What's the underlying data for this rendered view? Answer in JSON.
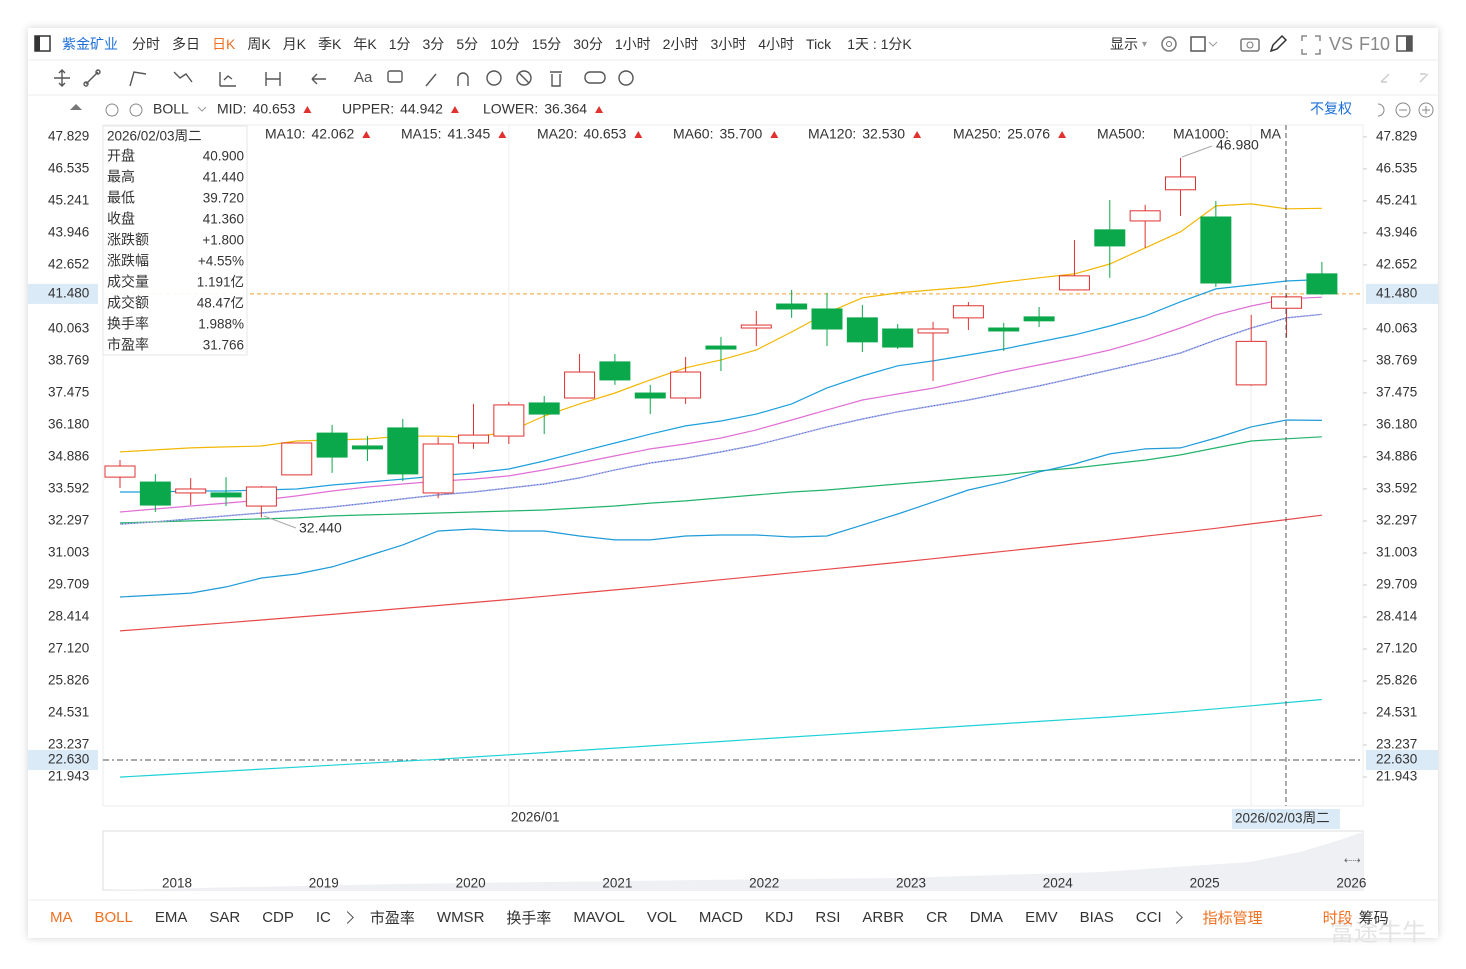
{
  "toolbar": {
    "stock": "紫金矿业",
    "periods": [
      "分时",
      "多日",
      "日K",
      "周K",
      "月K",
      "季K",
      "年K",
      "1分",
      "3分",
      "5分",
      "10分",
      "15分",
      "30分",
      "1小时",
      "2小时",
      "3小时",
      "4小时",
      "Tick",
      "1天 : 1分K"
    ],
    "active_period": "日K",
    "display": "显示",
    "vs": "VS",
    "f10": "F10",
    "text_tool": "Aa",
    "adjust": "不复权"
  },
  "chart_data": {
    "type": "candlestick",
    "categories": [
      null,
      null,
      null,
      null,
      null,
      null,
      null,
      null,
      null,
      null,
      null,
      "2026/01",
      null,
      null,
      null,
      null,
      null,
      null,
      null,
      null,
      null,
      null,
      null,
      null,
      null,
      null,
      null,
      null,
      null,
      null,
      null,
      null,
      null,
      null,
      null
    ],
    "open": [
      34.07,
      33.87,
      33.43,
      33.43,
      32.9,
      34.16,
      35.85,
      35.33,
      36.06,
      33.43,
      35.45,
      35.73,
      37.07,
      37.27,
      38.73,
      37.47,
      37.27,
      39.37,
      40.1,
      41.07,
      40.87,
      40.51,
      40.06,
      39.9,
      40.51,
      40.1,
      40.55,
      41.64,
      44.07,
      44.43,
      45.69,
      44.59,
      37.8,
      40.9,
      42.29
    ],
    "high": [
      34.76,
      34.19,
      34.03,
      34.07,
      33.71,
      35.45,
      36.18,
      35.73,
      36.42,
      35.69,
      37.03,
      37.11,
      37.35,
      39.05,
      39.05,
      37.8,
      38.93,
      39.74,
      40.79,
      41.64,
      41.52,
      41.03,
      40.26,
      40.35,
      41.15,
      40.31,
      40.95,
      43.66,
      45.28,
      45.08,
      46.98,
      45.24,
      40.63,
      41.44,
      42.77
    ],
    "low": [
      33.63,
      32.66,
      32.94,
      32.9,
      32.44,
      34.16,
      34.24,
      34.72,
      33.91,
      33.22,
      35.21,
      35.41,
      35.81,
      37.27,
      37.8,
      36.62,
      37.03,
      38.36,
      39.37,
      40.51,
      39.37,
      39.13,
      39.25,
      37.96,
      40.02,
      39.17,
      40.14,
      41.64,
      42.13,
      43.34,
      44.63,
      41.76,
      37.76,
      39.72,
      41.44
    ],
    "close": [
      34.52,
      32.94,
      33.59,
      33.27,
      33.67,
      35.45,
      34.88,
      35.21,
      34.2,
      35.41,
      35.77,
      36.99,
      36.62,
      38.32,
      38.0,
      37.27,
      38.32,
      39.25,
      40.22,
      40.87,
      40.06,
      39.54,
      39.33,
      40.06,
      41.0,
      39.98,
      40.39,
      42.21,
      43.42,
      44.84,
      46.21,
      41.92,
      39.56,
      41.36,
      41.48
    ],
    "up_color": "#e0312f",
    "down_color": "#0aa84a",
    "series": [
      {
        "name": "MA10:",
        "color": "#1ea0dc",
        "legend_value": "42.062",
        "values": [
          33.47,
          33.47,
          33.51,
          33.51,
          33.55,
          33.59,
          33.75,
          33.87,
          33.99,
          34.12,
          34.24,
          34.4,
          34.72,
          35.09,
          35.45,
          35.81,
          36.14,
          36.34,
          36.62,
          37.03,
          37.68,
          38.16,
          38.57,
          38.77,
          39.01,
          39.25,
          39.54,
          39.82,
          40.18,
          40.59,
          41.16,
          41.68,
          41.84,
          42.0,
          42.062
        ]
      },
      {
        "name": "MA15:",
        "color": "#e06fd6",
        "legend_value": "41.345",
        "values": [
          32.66,
          32.78,
          32.9,
          33.02,
          33.14,
          33.31,
          33.51,
          33.67,
          33.79,
          33.91,
          33.99,
          34.12,
          34.36,
          34.64,
          34.93,
          35.21,
          35.41,
          35.65,
          35.98,
          36.38,
          36.79,
          37.19,
          37.43,
          37.67,
          37.99,
          38.32,
          38.61,
          38.89,
          39.21,
          39.62,
          40.1,
          40.63,
          40.99,
          41.28,
          41.345
        ]
      },
      {
        "name": "MA20:",
        "color": "#2a7fd4",
        "legend_value": "40.653",
        "values": [
          32.17,
          32.26,
          32.38,
          32.5,
          32.62,
          32.74,
          32.86,
          33.02,
          33.19,
          33.35,
          33.47,
          33.63,
          33.79,
          34.04,
          34.36,
          34.64,
          34.84,
          35.09,
          35.37,
          35.73,
          36.1,
          36.42,
          36.71,
          36.95,
          37.19,
          37.47,
          37.76,
          38.08,
          38.4,
          38.73,
          39.09,
          39.62,
          40.1,
          40.51,
          40.653
        ]
      },
      {
        "name": "MA60:",
        "color": "#23b36b",
        "legend_value": "35.700",
        "values": [
          32.22,
          32.26,
          32.3,
          32.34,
          32.38,
          32.42,
          32.5,
          32.54,
          32.58,
          32.62,
          32.66,
          32.7,
          32.74,
          32.82,
          32.9,
          33.02,
          33.11,
          33.23,
          33.35,
          33.47,
          33.55,
          33.67,
          33.79,
          33.91,
          34.04,
          34.16,
          34.32,
          34.44,
          34.6,
          34.76,
          34.97,
          35.25,
          35.53,
          35.62,
          35.7
        ]
      },
      {
        "name": "MA120:",
        "color": "#e84a4a",
        "legend_value": "32.530",
        "values": [
          27.85,
          27.96,
          28.07,
          28.18,
          28.29,
          28.41,
          28.52,
          28.64,
          28.76,
          28.88,
          29.0,
          29.12,
          29.25,
          29.38,
          29.51,
          29.64,
          29.78,
          29.92,
          30.06,
          30.2,
          30.34,
          30.48,
          30.62,
          30.77,
          30.92,
          31.07,
          31.22,
          31.37,
          31.52,
          31.68,
          31.84,
          32.0,
          32.18,
          32.35,
          32.53
        ]
      },
      {
        "name": "MA250:",
        "color": "#1fd1d6",
        "legend_value": "25.076",
        "values": [
          21.94,
          22.02,
          22.1,
          22.18,
          22.26,
          22.34,
          22.42,
          22.5,
          22.58,
          22.66,
          22.75,
          22.84,
          22.93,
          23.02,
          23.11,
          23.2,
          23.29,
          23.38,
          23.47,
          23.56,
          23.65,
          23.74,
          23.83,
          23.92,
          24.01,
          24.1,
          24.19,
          24.28,
          24.37,
          24.47,
          24.58,
          24.7,
          24.82,
          24.95,
          25.076
        ]
      }
    ],
    "inactive_legend": [
      {
        "name": "MA500:",
        "color": "#f8e4a8"
      },
      {
        "name": "MA1000:",
        "color": "#dcd0f0"
      },
      {
        "name": "MA",
        "color": "#dcd0f0"
      }
    ],
    "boll": {
      "name": "BOLL",
      "series": [
        {
          "name": "MID:",
          "color": "#c9a6e6",
          "legend_color": "#f4a0c8",
          "dash": true,
          "legend_value": "40.653",
          "values": [
            32.17,
            32.26,
            32.38,
            32.5,
            32.62,
            32.74,
            32.86,
            33.02,
            33.19,
            33.35,
            33.47,
            33.63,
            33.79,
            34.04,
            34.36,
            34.64,
            34.84,
            35.09,
            35.37,
            35.73,
            36.1,
            36.42,
            36.71,
            36.95,
            37.19,
            37.47,
            37.76,
            38.08,
            38.4,
            38.73,
            39.09,
            39.62,
            40.1,
            40.51,
            40.653
          ]
        },
        {
          "name": "UPPER:",
          "color": "#f2b705",
          "legend_color": "#f2b705",
          "dash": false,
          "legend_value": "44.942",
          "values": [
            35.09,
            35.17,
            35.25,
            35.29,
            35.33,
            35.53,
            35.57,
            35.61,
            35.73,
            35.73,
            35.69,
            35.9,
            36.54,
            37.03,
            37.47,
            38.0,
            38.49,
            38.81,
            39.21,
            39.94,
            40.71,
            41.32,
            41.52,
            41.64,
            41.76,
            41.96,
            42.13,
            42.29,
            42.69,
            43.34,
            43.99,
            45.04,
            45.12,
            44.92,
            44.942
          ]
        },
        {
          "name": "LOWER:",
          "color": "#1e9bd8",
          "legend_color": "#1e9bd8",
          "dash": false,
          "legend_value": "36.364",
          "values": [
            29.22,
            29.3,
            29.38,
            29.63,
            29.99,
            30.15,
            30.44,
            30.88,
            31.33,
            31.89,
            31.97,
            31.89,
            31.89,
            31.69,
            31.53,
            31.53,
            31.69,
            31.73,
            31.73,
            31.65,
            31.69,
            32.13,
            32.58,
            33.06,
            33.55,
            33.87,
            34.28,
            34.6,
            35.01,
            35.21,
            35.25,
            35.65,
            36.1,
            36.38,
            36.364
          ]
        }
      ]
    },
    "ylim": [
      20.81,
      48.31
    ],
    "yticks": [
      47.829,
      46.535,
      45.241,
      43.946,
      42.652,
      40.063,
      38.769,
      37.475,
      {
        "value": 36.18,
        "label": "36.180"
      },
      34.886,
      33.592,
      32.297,
      31.003,
      29.709,
      28.414,
      {
        "value": 27.12,
        "label": "27.120"
      },
      25.826,
      24.531,
      23.237,
      21.943
    ],
    "reference_lines": [
      {
        "value": 41.48,
        "label": "41.480",
        "color": "#f0a030"
      },
      {
        "value": 22.63,
        "label": "22.630",
        "color": "#555555"
      }
    ],
    "annotations": [
      "46.980",
      "32.440"
    ]
  },
  "tooltip": {
    "date": "2026/02/03周二",
    "rows": [
      [
        "开盘",
        "40.900"
      ],
      [
        "最高",
        "41.440"
      ],
      [
        "最低",
        "39.720"
      ],
      [
        "收盘",
        "41.360"
      ],
      [
        "涨跌额",
        "+1.800"
      ],
      [
        "涨跌幅",
        "+4.55%"
      ],
      [
        "成交量",
        "1.191亿"
      ],
      [
        "成交额",
        "48.47亿"
      ],
      [
        "换手率",
        "1.988%"
      ],
      [
        "市盈率",
        "31.766"
      ]
    ]
  },
  "navigator": {
    "years": [
      "2018",
      "2019",
      "2020",
      "2021",
      "2022",
      "2023",
      "2024",
      "2025",
      "2026"
    ]
  },
  "indicator_tabs": [
    "MA",
    "BOLL",
    "EMA",
    "SAR",
    "CDP",
    "IC"
  ],
  "active_tabs": [
    "MA",
    "BOLL"
  ],
  "sub_tabs": [
    "市盈率",
    "WMSR",
    "换手率",
    "MAVOL",
    "VOL",
    "MACD",
    "KDJ",
    "RSI",
    "ARBR",
    "CR",
    "DMA",
    "EMV",
    "BIAS",
    "CCI"
  ],
  "manage": "指标管理",
  "period_tab": "时段",
  "chips_tab": "筹码",
  "watermark": "富途牛牛"
}
